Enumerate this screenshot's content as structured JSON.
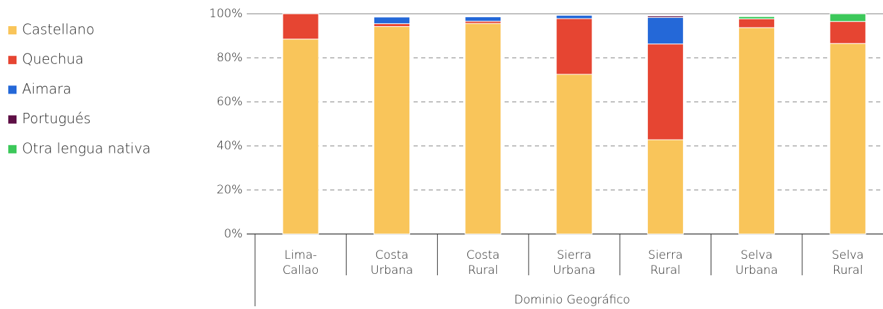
{
  "chart_data": {
    "type": "stacked_bar",
    "categories": [
      [
        "Lima-",
        "Callao"
      ],
      [
        "Costa",
        "Urbana"
      ],
      [
        "Costa",
        "Rural"
      ],
      [
        "Sierra",
        "Urbana"
      ],
      [
        "Sierra",
        "Rural"
      ],
      [
        "Selva",
        "Urbana"
      ],
      [
        "Selva",
        "Rural"
      ]
    ],
    "series": [
      {
        "name": "Castellano",
        "color": "#F9C55A",
        "values": [
          88.5,
          94.2,
          95.6,
          72.5,
          42.8,
          93.7,
          86.5
        ]
      },
      {
        "name": "Quechua",
        "color": "#E64532",
        "values": [
          11.5,
          1.3,
          1.0,
          25.3,
          43.5,
          4.0,
          10.0
        ]
      },
      {
        "name": "Aimara",
        "color": "#2468D8",
        "values": [
          0,
          3.0,
          2.0,
          1.5,
          12.0,
          0,
          0
        ]
      },
      {
        "name": "Portugués",
        "color": "#5E0F45",
        "values": [
          0,
          0,
          0,
          0,
          0.7,
          0,
          0
        ]
      },
      {
        "name": "Otra lengua nativa",
        "color": "#3CC85A",
        "values": [
          0,
          0,
          0,
          0,
          0,
          1.0,
          3.5
        ]
      }
    ],
    "xlabel": "Dominio Geográfico",
    "ylim": [
      0,
      100
    ],
    "yticks": [
      {
        "value": 0,
        "label": "0%"
      },
      {
        "value": 20,
        "label": "20%"
      },
      {
        "value": 40,
        "label": "40%"
      },
      {
        "value": 60,
        "label": "60%"
      },
      {
        "value": 80,
        "label": "80%"
      },
      {
        "value": 100,
        "label": "100%"
      }
    ],
    "grid": true,
    "legend": "left"
  }
}
